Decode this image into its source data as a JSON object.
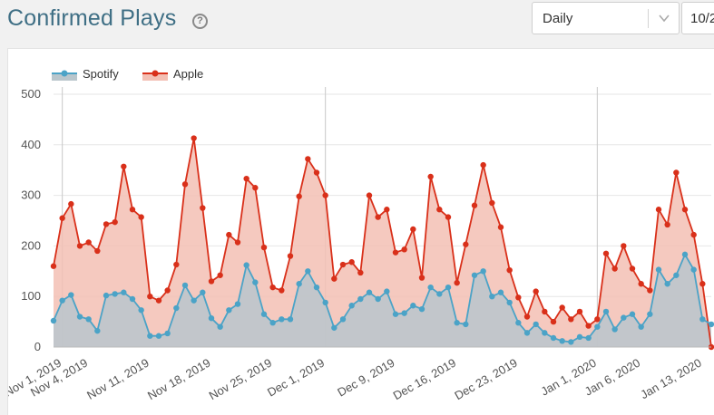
{
  "header": {
    "title": "Confirmed Plays",
    "help_glyph": "?"
  },
  "controls": {
    "period_value": "Daily",
    "date_value": "10/2",
    "chevron_icon": "chevron-down-icon"
  },
  "colors": {
    "spotify": "#4ba3c7",
    "apple": "#d9301a",
    "apple_fill": "#f3c0b4",
    "spotify_fill": "#b9c6cc"
  },
  "chart_data": {
    "type": "area",
    "title": "",
    "xlabel": "",
    "ylabel": "",
    "ylim": [
      0,
      500
    ],
    "yticks": [
      0,
      100,
      200,
      300,
      400,
      500
    ],
    "grid": "vertical lines at month starts",
    "legend_position": "top-left",
    "x_tick_labels": [
      "Nov 1, 2019",
      "Nov 4, 2019",
      "Nov 11, 2019",
      "Nov 18, 2019",
      "Nov 25, 2019",
      "Dec 1, 2019",
      "Dec 9, 2019",
      "Dec 16, 2019",
      "Dec 23, 2019",
      "Jan 1, 2020",
      "Jan 6, 2020",
      "Jan 13, 2020"
    ],
    "x_tick_day_index": [
      1,
      4,
      11,
      18,
      25,
      31,
      39,
      46,
      53,
      62,
      67,
      74
    ],
    "gridline_day_index": [
      1,
      31,
      62
    ],
    "x_start": "Oct 31, 2019",
    "series": [
      {
        "name": "Spotify",
        "values": [
          52,
          92,
          103,
          60,
          55,
          32,
          102,
          105,
          108,
          95,
          73,
          22,
          22,
          27,
          77,
          122,
          92,
          108,
          57,
          40,
          73,
          85,
          162,
          128,
          65,
          48,
          55,
          55,
          125,
          150,
          118,
          88,
          38,
          55,
          82,
          95,
          108,
          95,
          110,
          65,
          67,
          82,
          75,
          118,
          105,
          118,
          48,
          45,
          142,
          150,
          100,
          108,
          88,
          48,
          28,
          45,
          28,
          18,
          12,
          10,
          20,
          18,
          40,
          70,
          35,
          58,
          65,
          40,
          65,
          153,
          125,
          142,
          183,
          153,
          55,
          45
        ]
      },
      {
        "name": "Apple",
        "values": [
          160,
          255,
          283,
          200,
          207,
          190,
          243,
          247,
          357,
          272,
          257,
          100,
          92,
          112,
          163,
          322,
          413,
          275,
          130,
          142,
          222,
          207,
          333,
          315,
          197,
          118,
          112,
          180,
          298,
          372,
          345,
          300,
          135,
          163,
          168,
          147,
          300,
          257,
          272,
          187,
          193,
          233,
          137,
          337,
          272,
          257,
          127,
          203,
          280,
          360,
          285,
          237,
          152,
          98,
          60,
          110,
          70,
          50,
          78,
          55,
          70,
          42,
          55,
          185,
          155,
          200,
          155,
          125,
          112,
          272,
          242,
          345,
          272,
          222,
          125,
          0
        ]
      }
    ]
  }
}
